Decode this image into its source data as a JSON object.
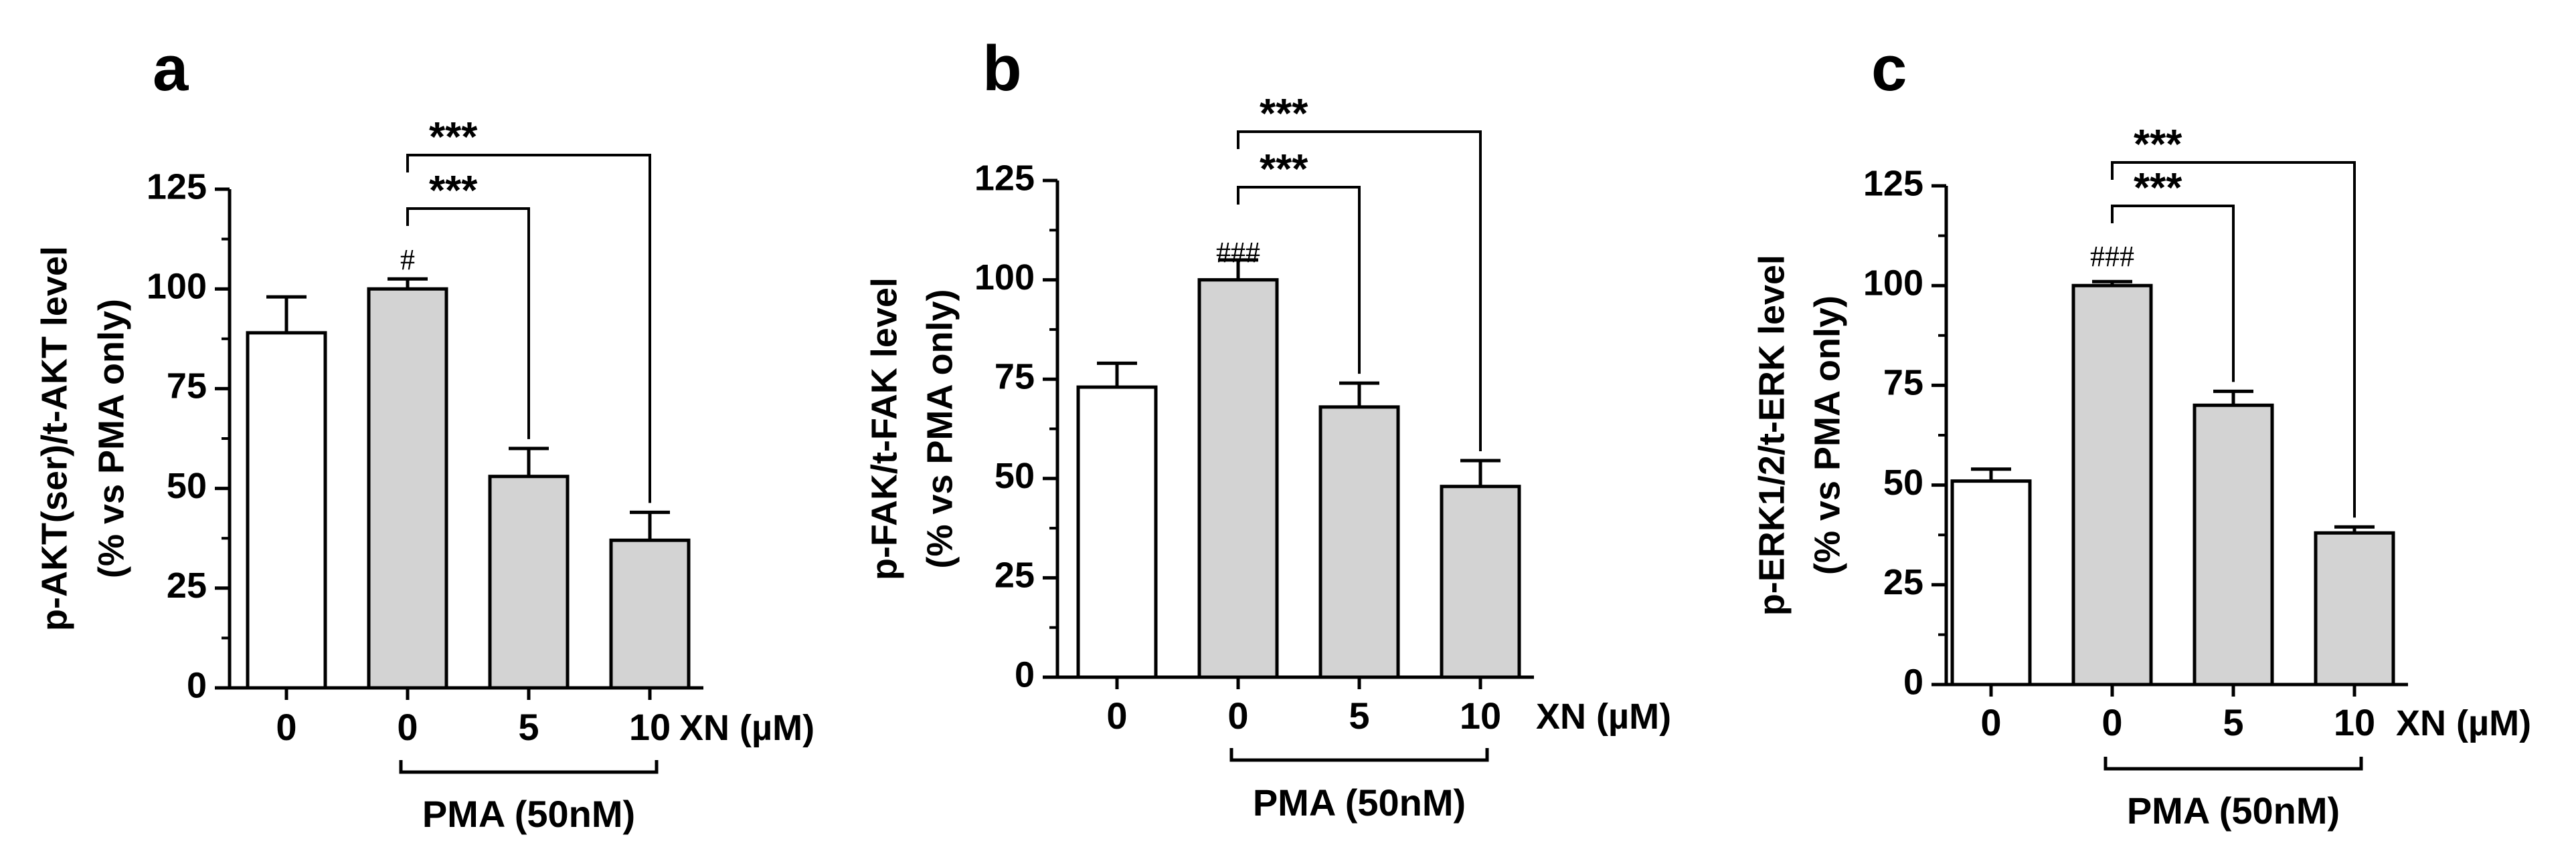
{
  "chart_data": [
    {
      "type": "bar",
      "panel": "a",
      "ylabel_line1": "p-AKT(ser)/t-AKT level",
      "ylabel_line2": "(% vs PMA only)",
      "categories": [
        "0",
        "0",
        "5",
        "10"
      ],
      "values": [
        89,
        100,
        53,
        37
      ],
      "errors": [
        9,
        2.5,
        7,
        7
      ],
      "fills": [
        "#ffffff",
        "#d3d3d3",
        "#d3d3d3",
        "#d3d3d3"
      ],
      "ylim": [
        0,
        125
      ],
      "yticks": [
        0,
        25,
        50,
        75,
        100,
        125
      ],
      "x_unit": "XN (µM)",
      "group_label": "PMA (50nM)",
      "hash_label": "#",
      "comparisons": [
        {
          "from": 1,
          "to": 2,
          "label": "***"
        },
        {
          "from": 1,
          "to": 3,
          "label": "***"
        }
      ]
    },
    {
      "type": "bar",
      "panel": "b",
      "ylabel_line1": "p-FAK/t-FAK level",
      "ylabel_line2": "(% vs PMA only)",
      "categories": [
        "0",
        "0",
        "5",
        "10"
      ],
      "values": [
        73,
        100,
        68,
        48
      ],
      "errors": [
        6,
        5,
        6,
        6.5
      ],
      "fills": [
        "#ffffff",
        "#d3d3d3",
        "#d3d3d3",
        "#d3d3d3"
      ],
      "ylim": [
        0,
        125
      ],
      "yticks": [
        0,
        25,
        50,
        75,
        100,
        125
      ],
      "x_unit": "XN (µM)",
      "group_label": "PMA (50nM)",
      "hash_label": "###",
      "comparisons": [
        {
          "from": 1,
          "to": 2,
          "label": "***"
        },
        {
          "from": 1,
          "to": 3,
          "label": "***"
        }
      ]
    },
    {
      "type": "bar",
      "panel": "c",
      "ylabel_line1": "p-ERK1/2/t-ERK level",
      "ylabel_line2": "(% vs PMA only)",
      "categories": [
        "0",
        "0",
        "5",
        "10"
      ],
      "values": [
        51,
        100,
        70,
        38
      ],
      "errors": [
        3,
        1,
        3.5,
        1.5
      ],
      "fills": [
        "#ffffff",
        "#d3d3d3",
        "#d3d3d3",
        "#d3d3d3"
      ],
      "ylim": [
        0,
        125
      ],
      "yticks": [
        0,
        25,
        50,
        75,
        100,
        125
      ],
      "x_unit": "XN (µM)",
      "group_label": "PMA (50nM)",
      "hash_label": "###",
      "comparisons": [
        {
          "from": 1,
          "to": 2,
          "label": "***"
        },
        {
          "from": 1,
          "to": 3,
          "label": "***"
        }
      ]
    }
  ]
}
